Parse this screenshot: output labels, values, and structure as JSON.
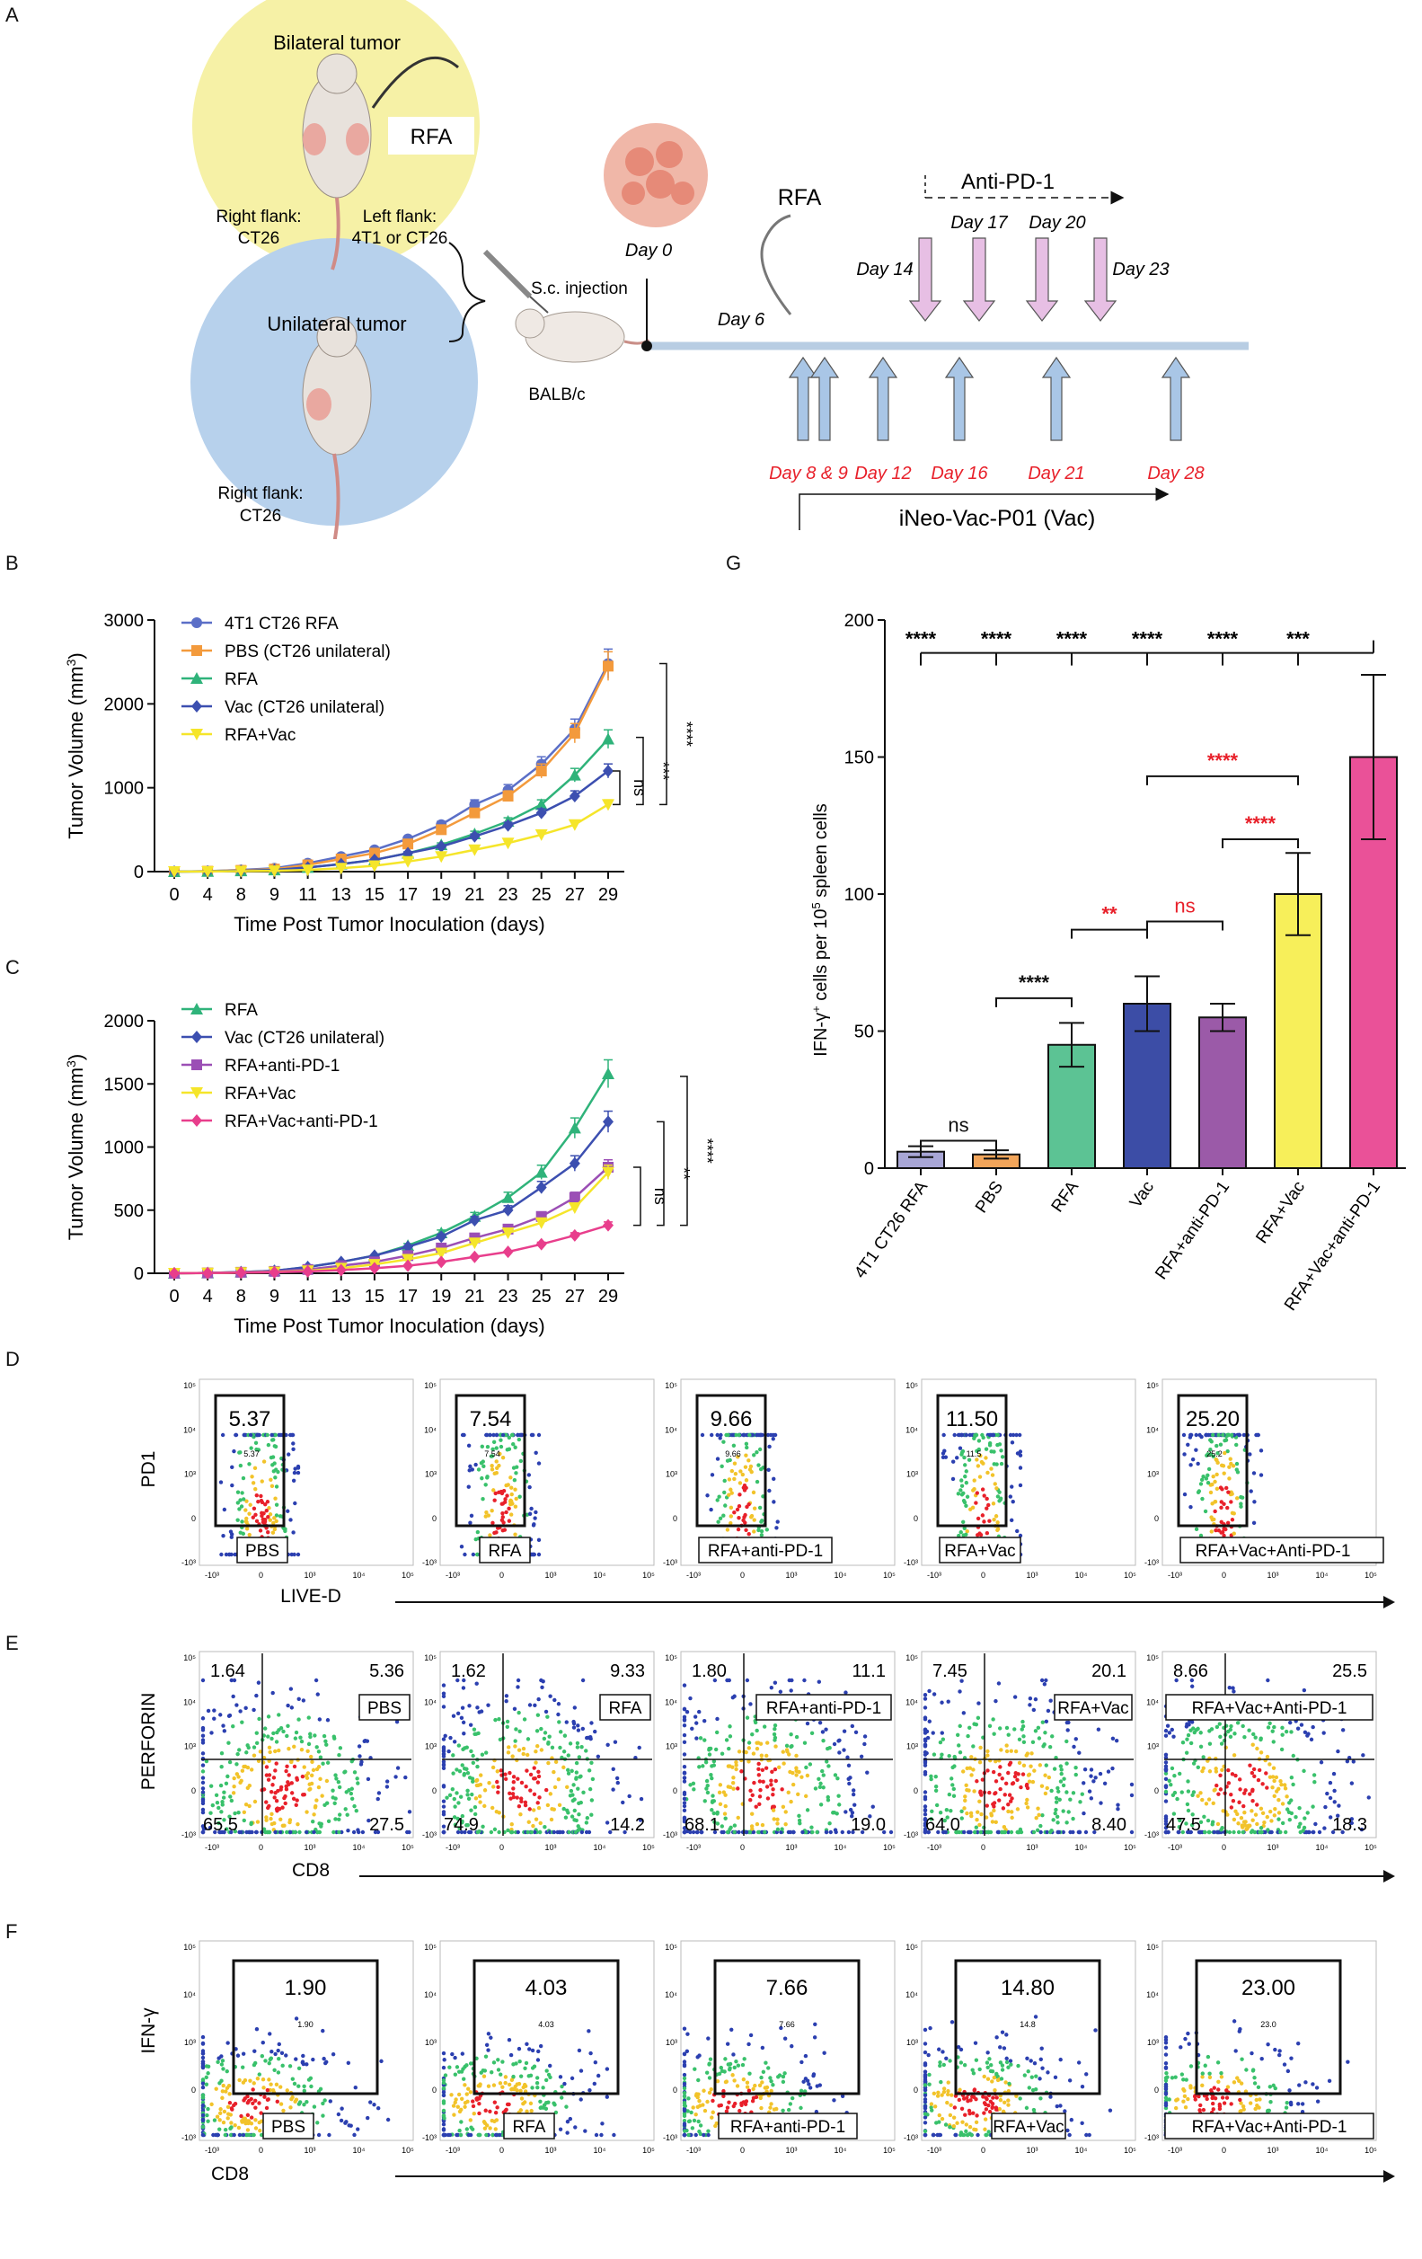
{
  "panel_letters": {
    "a": "A",
    "b": "B",
    "c": "C",
    "d": "D",
    "e": "E",
    "f": "F",
    "g": "G"
  },
  "schematic": {
    "bilateral": "Bilateral tumor",
    "rfa": "RFA",
    "right_flank": "Right flank:",
    "ct26": "CT26",
    "left_flank": "Left flank:",
    "left_flank_model": "4T1 or CT26",
    "unilateral": "Unilateral tumor",
    "uni_right_flank": "Right flank:",
    "uni_ct26": "CT26",
    "sc_injection": "S.c. injection",
    "strain": "BALB/c",
    "day0": "Day 0",
    "rfa_top": "RFA",
    "day6": "Day 6",
    "anti_pd1": "Anti-PD-1",
    "pd1_days": [
      "Day 14",
      "Day 17",
      "Day 20",
      "Day 23"
    ],
    "vac_days": [
      "Day 8 & 9",
      "Day 12",
      "Day 16",
      "Day 21",
      "Day 28"
    ],
    "vac_label": "iNeo-Vac-P01 (Vac)",
    "colors": {
      "bilateral_bg": "#f6f1a6",
      "unilateral_bg": "#b7d1ec",
      "timeline": "#b8cde3",
      "vac_arrow": "#a9c6e6",
      "pd1_arrow": "#e7bfe4",
      "red": "#e8202a"
    }
  },
  "chart_data": [
    {
      "id": "B",
      "type": "line",
      "title": "",
      "xlabel": "Time Post Tumor Inoculation (days)",
      "ylabel": "Tumor Volume (mm",
      "ylabel_sup": "3",
      "ylabel_close": ")",
      "x": [
        0,
        4,
        8,
        9,
        11,
        13,
        15,
        17,
        19,
        21,
        23,
        25,
        27,
        29
      ],
      "ylim": [
        0,
        3000
      ],
      "yticks": [
        0,
        1000,
        2000,
        3000
      ],
      "series": [
        {
          "name": "4T1 CT26 RFA",
          "color": "#5b6fc7",
          "marker": "circle",
          "values": [
            0,
            5,
            20,
            40,
            100,
            180,
            260,
            390,
            560,
            800,
            970,
            1280,
            1700,
            2480
          ]
        },
        {
          "name": "PBS (CT26 unilateral)",
          "color": "#f39a3c",
          "marker": "square",
          "values": [
            0,
            5,
            15,
            30,
            80,
            150,
            220,
            330,
            500,
            700,
            900,
            1200,
            1650,
            2450
          ]
        },
        {
          "name": "RFA",
          "color": "#2fb37a",
          "marker": "triangle",
          "values": [
            0,
            3,
            10,
            20,
            50,
            90,
            140,
            220,
            320,
            450,
            600,
            800,
            1150,
            1580
          ]
        },
        {
          "name": "Vac (CT26 unilateral)",
          "color": "#3c4fb0",
          "marker": "diamond",
          "values": [
            0,
            3,
            10,
            20,
            50,
            90,
            140,
            220,
            300,
            420,
            550,
            700,
            900,
            1200
          ]
        },
        {
          "name": "RFA+Vac",
          "color": "#f5e52a",
          "marker": "tri-down",
          "values": [
            0,
            2,
            5,
            10,
            20,
            40,
            70,
            120,
            180,
            260,
            340,
            440,
            560,
            800
          ]
        }
      ],
      "annotations": [
        "ns",
        "***",
        "****"
      ]
    },
    {
      "id": "C",
      "type": "line",
      "title": "",
      "xlabel": "Time Post Tumor Inoculation (days)",
      "ylabel": "Tumor Volume (mm",
      "ylabel_sup": "3",
      "ylabel_close": ")",
      "x": [
        0,
        4,
        8,
        9,
        11,
        13,
        15,
        17,
        19,
        21,
        23,
        25,
        27,
        29
      ],
      "ylim": [
        0,
        2000
      ],
      "yticks": [
        0,
        500,
        1000,
        1500,
        2000
      ],
      "series": [
        {
          "name": "RFA",
          "color": "#2fb37a",
          "marker": "triangle",
          "values": [
            0,
            3,
            10,
            20,
            50,
            90,
            140,
            220,
            320,
            450,
            600,
            800,
            1150,
            1580
          ]
        },
        {
          "name": "Vac (CT26 unilateral)",
          "color": "#3c4fb0",
          "marker": "diamond",
          "values": [
            0,
            3,
            10,
            20,
            50,
            90,
            140,
            210,
            290,
            420,
            500,
            680,
            870,
            1200
          ]
        },
        {
          "name": "RFA+anti-PD-1",
          "color": "#9b4fb5",
          "marker": "square",
          "values": [
            0,
            3,
            8,
            15,
            30,
            60,
            90,
            140,
            200,
            280,
            350,
            450,
            600,
            840
          ]
        },
        {
          "name": "RFA+Vac",
          "color": "#f5e52a",
          "marker": "tri-down",
          "values": [
            0,
            2,
            5,
            10,
            20,
            40,
            70,
            110,
            160,
            240,
            320,
            400,
            520,
            800
          ]
        },
        {
          "name": "RFA+Vac+anti-PD-1",
          "color": "#e83e8c",
          "marker": "diamond",
          "values": [
            0,
            2,
            5,
            8,
            15,
            25,
            40,
            60,
            90,
            130,
            170,
            230,
            300,
            380
          ]
        }
      ],
      "annotations": [
        "ns",
        "**",
        "****"
      ]
    },
    {
      "id": "G",
      "type": "bar",
      "title": "",
      "xlabel": "",
      "ylabel": "IFN-γ",
      "ylabel_sup": "+",
      "ylabel_rest": " cells per 10",
      "ylabel_sup2": "5",
      "ylabel_end": " spleen cells",
      "ylim": [
        0,
        200
      ],
      "yticks": [
        0,
        50,
        100,
        150,
        200
      ],
      "categories": [
        "4T1 CT26 RFA",
        "PBS",
        "RFA",
        "Vac",
        "RFA+anti-PD-1",
        "RFA+Vac",
        "RFA+Vac+anti-PD-1"
      ],
      "values": [
        6,
        5,
        45,
        60,
        55,
        100,
        150
      ],
      "errors": [
        2,
        1.5,
        8,
        10,
        5,
        15,
        30
      ],
      "colors": [
        "#a8a6d6",
        "#f2a55a",
        "#5cc394",
        "#3c4da6",
        "#9b5aa8",
        "#f7ef5a",
        "#ea5198"
      ],
      "top_sig": [
        "****",
        "****",
        "****",
        "****",
        "****",
        "***"
      ],
      "pair_sig": [
        {
          "a": 0,
          "b": 1,
          "label": "ns",
          "color": "#111111"
        },
        {
          "a": 1,
          "b": 2,
          "label": "****",
          "color": "#111111"
        },
        {
          "a": 2,
          "b": 3,
          "label": "**",
          "color": "#e8202a"
        },
        {
          "a": 3,
          "b": 4,
          "label": "ns",
          "color": "#e8202a"
        },
        {
          "a": 4,
          "b": 5,
          "label": "****",
          "color": "#e8202a"
        },
        {
          "a": 3,
          "b": 5,
          "label": "****",
          "color": "#e8202a"
        }
      ]
    }
  ],
  "flow": {
    "D": {
      "ylabel": "PD1",
      "xlabel": "LIVE-D",
      "gate_values": [
        "5.37",
        "7.54",
        "9.66",
        "11.50",
        "25.20"
      ],
      "gate_small": [
        "5.37",
        "7.54",
        "9.66",
        "11.5",
        "25.2"
      ],
      "groups": [
        "PBS",
        "RFA",
        "RFA+anti-PD-1",
        "RFA+Vac",
        "RFA+Vac+Anti-PD-1"
      ]
    },
    "E": {
      "ylabel": "PERFORIN",
      "xlabel": "CD8",
      "groups": [
        "PBS",
        "RFA",
        "RFA+anti-PD-1",
        "RFA+Vac",
        "RFA+Vac+Anti-PD-1"
      ],
      "ul": [
        "1.64",
        "1.62",
        "1.80",
        "7.45",
        "8.66"
      ],
      "ur": [
        "5.36",
        "9.33",
        "11.1",
        "20.1",
        "25.5"
      ],
      "ll": [
        "65.5",
        "74.9",
        "68.1",
        "64.0",
        "47.5"
      ],
      "lr": [
        "27.5",
        "14.2",
        "19.0",
        "8.40",
        "18.3"
      ]
    },
    "F": {
      "ylabel": "IFN-γ",
      "xlabel": "CD8",
      "gate_values": [
        "1.90",
        "4.03",
        "7.66",
        "14.80",
        "23.00"
      ],
      "gate_small": [
        "1.90",
        "4.03",
        "7.66",
        "14.8",
        "23.0"
      ],
      "groups": [
        "PBS",
        "RFA",
        "RFA+anti-PD-1",
        "RFA+Vac",
        "RFA+Vac+Anti-PD-1"
      ]
    },
    "axis_ticks": {
      "y": [
        "10⁵",
        "10⁴",
        "10³",
        "0",
        "-10³"
      ],
      "x": [
        "-10³",
        "0",
        "10³",
        "10⁴",
        "10⁵"
      ]
    }
  }
}
